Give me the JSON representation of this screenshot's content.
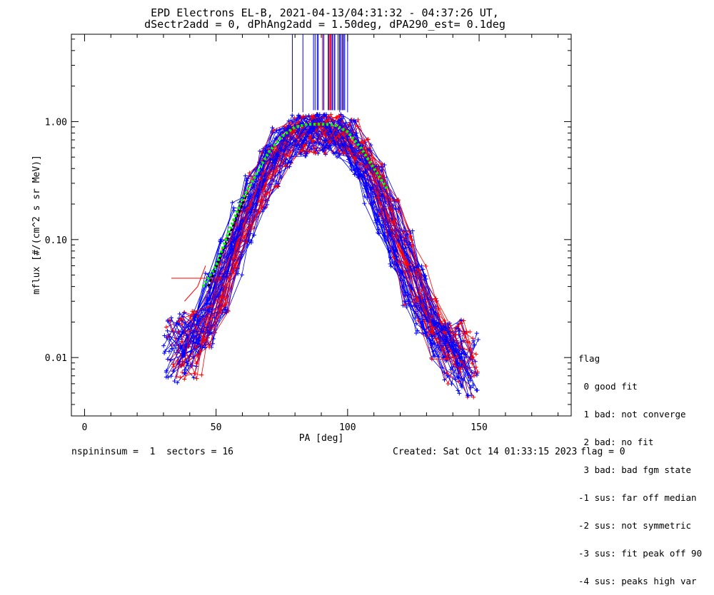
{
  "title_line1": "EPD Electrons EL-B, 2021-04-13/04:31:32 - 04:37:26 UT,",
  "title_line2": "dSectr2add = 0, dPhAng2add = 1.50deg, dPA290_est=   0.1deg",
  "legend": {
    "header": "flag",
    "items": [
      " 0 good fit",
      " 1 bad: not converge",
      " 2 bad: no fit",
      " 3 bad: bad fgm state",
      "-1 sus: far off median",
      "-2 sus: not symmetric",
      "-3 sus: fit peak off 90",
      "-4 sus: peaks high var"
    ]
  },
  "footer": {
    "left": "nspininsum =  1  sectors = 16",
    "created": "Created: Sat Oct 14 01:33:15 2023",
    "flag": "flag = 0"
  },
  "colors": {
    "series_a": "#0000ff",
    "series_b": "#ff0000",
    "fit": "#00ff00",
    "black_fit": "#000000"
  },
  "chart_data": {
    "type": "line",
    "xlabel": "PA [deg]",
    "ylabel": "mflux [#/(cm^2 s sr MeV)]",
    "xlim": [
      -5,
      185
    ],
    "ylim": [
      0.0032,
      5.5
    ],
    "y_scale": "log",
    "x_ticks": [
      0,
      50,
      100,
      150
    ],
    "y_ticks": [
      0.01,
      0.1,
      1.0
    ],
    "y_tick_labels": [
      "0.01",
      "0.10",
      "1.00"
    ],
    "grid": false,
    "marker": "+",
    "spectra_shape": {
      "pa": [
        34,
        40,
        45,
        50,
        55,
        60,
        65,
        70,
        75,
        80,
        85,
        90,
        95,
        100,
        105,
        110,
        115,
        120,
        125,
        130,
        135,
        140,
        145
      ],
      "mflux": [
        0.012,
        0.013,
        0.018,
        0.035,
        0.07,
        0.14,
        0.25,
        0.42,
        0.62,
        0.76,
        0.8,
        0.8,
        0.78,
        0.7,
        0.5,
        0.3,
        0.16,
        0.08,
        0.04,
        0.022,
        0.014,
        0.011,
        0.009
      ]
    },
    "series": [
      {
        "name": "fit (green)",
        "x": [
          45,
          50,
          55,
          60,
          65,
          70,
          75,
          80,
          85,
          90,
          95,
          100,
          105,
          110,
          115
        ],
        "y": [
          0.04,
          0.06,
          0.12,
          0.22,
          0.35,
          0.55,
          0.75,
          0.9,
          0.95,
          0.95,
          0.94,
          0.82,
          0.6,
          0.4,
          0.27
        ]
      },
      {
        "name": "fit (black)",
        "x": [
          47,
          52,
          57,
          62
        ],
        "y": [
          0.04,
          0.075,
          0.14,
          0.25
        ]
      }
    ]
  }
}
